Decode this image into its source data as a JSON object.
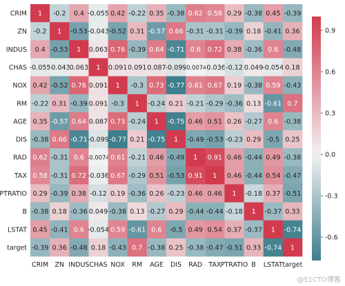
{
  "chart_data": {
    "type": "heatmap",
    "variables": [
      "CRIM",
      "ZN",
      "INDUS",
      "CHAS",
      "NOX",
      "RM",
      "AGE",
      "DIS",
      "RAD",
      "TAX",
      "PTRATIO",
      "B",
      "LSTAT",
      "target"
    ],
    "cell_labels": [
      [
        "1",
        "-0.2",
        "0.4",
        "-0.055",
        "0.42",
        "-0.22",
        "0.35",
        "-0.38",
        "0.62",
        "0.58",
        "0.29",
        "-0.38",
        "0.45",
        "-0.39"
      ],
      [
        "-0.2",
        "1",
        "-0.53",
        "-0.043",
        "-0.52",
        "0.31",
        "-0.57",
        "0.66",
        "-0.31",
        "-0.31",
        "-0.39",
        "0.18",
        "-0.41",
        "0.36"
      ],
      [
        "0.4",
        "-0.53",
        "1",
        "0.063",
        "0.76",
        "-0.39",
        "0.64",
        "-0.71",
        "0.6",
        "0.72",
        "0.38",
        "-0.36",
        "0.6",
        "-0.48"
      ],
      [
        "-0.055",
        "-0.043",
        "0.063",
        "1",
        "0.091",
        "0.091",
        "0.087",
        "-0.099",
        "-0.0074",
        "-0.036",
        "-0.12",
        "0.049",
        "-0.054",
        "0.18"
      ],
      [
        "0.42",
        "-0.52",
        "0.76",
        "0.091",
        "1",
        "-0.3",
        "0.73",
        "-0.77",
        "0.61",
        "0.67",
        "0.19",
        "-0.38",
        "0.59",
        "-0.43"
      ],
      [
        "-0.22",
        "0.31",
        "-0.39",
        "0.091",
        "-0.3",
        "1",
        "-0.24",
        "0.21",
        "-0.21",
        "-0.29",
        "-0.36",
        "0.13",
        "-0.61",
        "0.7"
      ],
      [
        "0.35",
        "-0.57",
        "0.64",
        "0.087",
        "0.73",
        "-0.24",
        "1",
        "-0.75",
        "0.46",
        "0.51",
        "0.26",
        "-0.27",
        "0.6",
        "-0.38"
      ],
      [
        "-0.38",
        "0.66",
        "-0.71",
        "-0.099",
        "-0.77",
        "0.21",
        "-0.75",
        "1",
        "-0.49",
        "-0.53",
        "-0.23",
        "0.29",
        "-0.5",
        "0.25"
      ],
      [
        "0.62",
        "-0.31",
        "0.6",
        "-0.0074",
        "0.61",
        "-0.21",
        "0.46",
        "-0.49",
        "1",
        "0.91",
        "0.46",
        "-0.44",
        "0.49",
        "-0.38"
      ],
      [
        "0.58",
        "-0.31",
        "0.72",
        "-0.036",
        "0.67",
        "-0.29",
        "0.51",
        "-0.53",
        "0.91",
        "1",
        "0.46",
        "-0.44",
        "0.54",
        "-0.47"
      ],
      [
        "0.29",
        "-0.39",
        "0.38",
        "-0.12",
        "0.19",
        "-0.36",
        "0.26",
        "-0.23",
        "0.46",
        "0.46",
        "1",
        "-0.18",
        "0.37",
        "-0.51"
      ],
      [
        "-0.38",
        "0.18",
        "-0.36",
        "0.049",
        "-0.38",
        "0.13",
        "-0.27",
        "0.29",
        "-0.44",
        "-0.44",
        "-0.18",
        "1",
        "-0.37",
        "0.33"
      ],
      [
        "0.45",
        "-0.41",
        "0.6",
        "-0.054",
        "0.59",
        "-0.61",
        "0.6",
        "-0.5",
        "0.49",
        "0.54",
        "0.37",
        "-0.37",
        "1",
        "-0.74"
      ],
      [
        "-0.39",
        "0.36",
        "-0.48",
        "0.18",
        "-0.43",
        "0.7",
        "-0.38",
        "0.25",
        "-0.38",
        "-0.47",
        "-0.51",
        "0.33",
        "-0.74",
        "1"
      ]
    ],
    "colorbar": {
      "ticks": [
        "0.9",
        "0.6",
        "0.3",
        "0.0",
        "-0.3",
        "-0.6"
      ],
      "range": [
        -0.77,
        1.0
      ],
      "low_color": "#3e7e8d",
      "mid_color": "#f2f2f2",
      "high_color": "#d23a4e"
    }
  },
  "watermark": "@51CTO博客"
}
